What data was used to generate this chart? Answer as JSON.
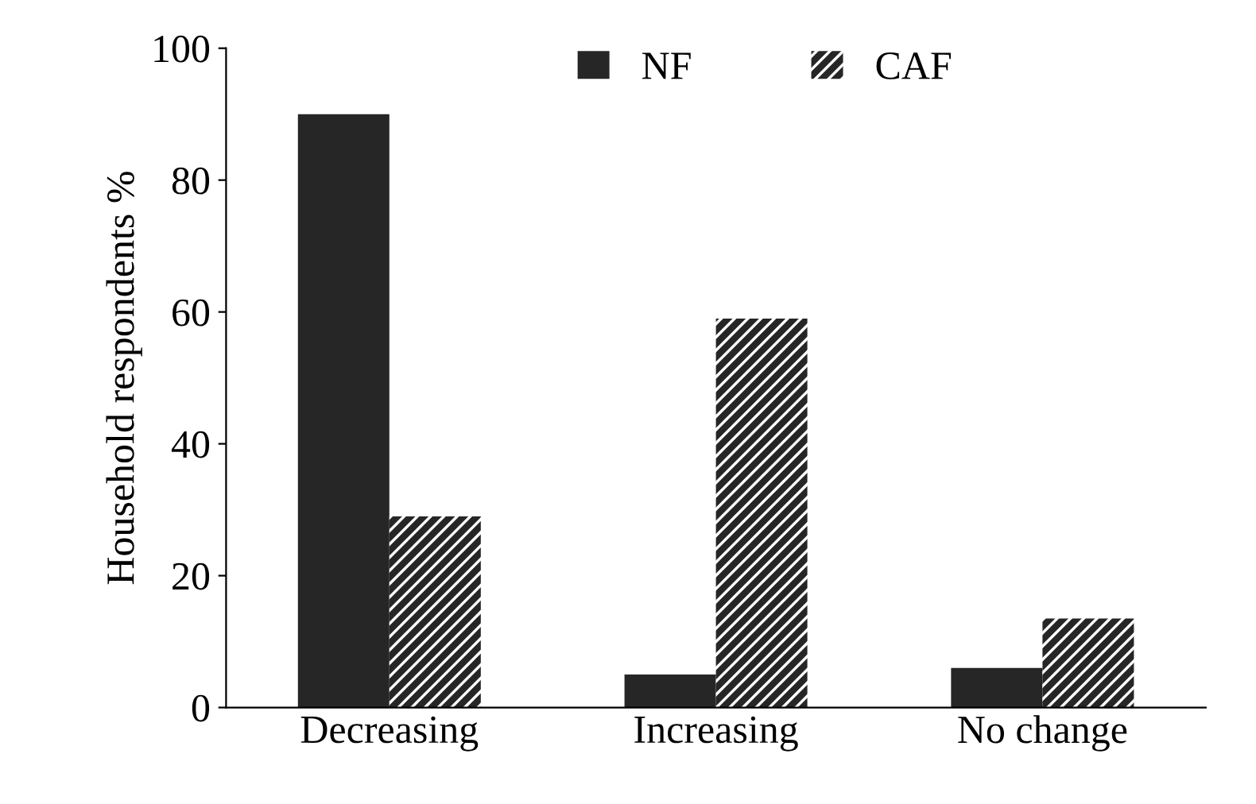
{
  "chart_data": {
    "type": "bar",
    "ylabel": "Household respondents %",
    "categories": [
      "Decreasing",
      "Increasing",
      "No change"
    ],
    "series": [
      {
        "name": "NF",
        "color": "#262626",
        "values": [
          90,
          5,
          6
        ]
      },
      {
        "name": "CAF",
        "color": "#262626",
        "values": [
          29,
          59,
          13.5
        ]
      }
    ],
    "ylim": [
      0,
      100
    ],
    "yticks": [
      0,
      20,
      40,
      60,
      80,
      100
    ],
    "grid": false,
    "legend": "top"
  }
}
